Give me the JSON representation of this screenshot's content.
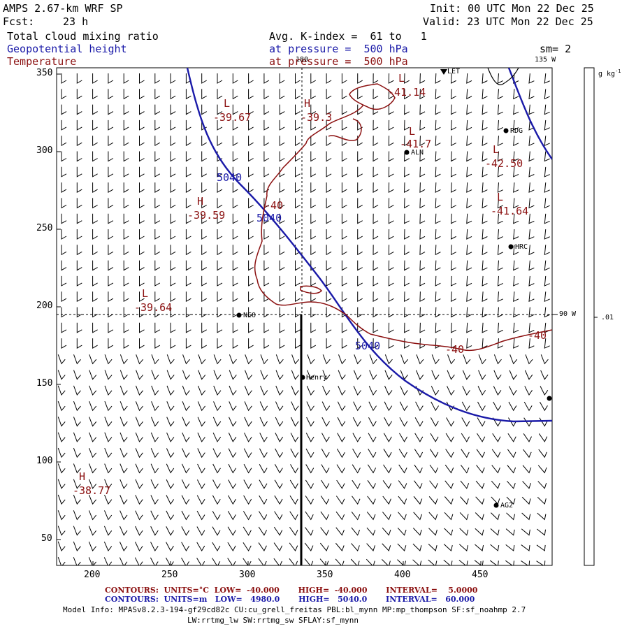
{
  "header": {
    "model": "AMPS 2.67-km WRF SP",
    "fcst_label": "Fcst:",
    "fcst_value": "23 h",
    "field1": "Total cloud mixing ratio",
    "field2": "Geopotential height",
    "field3": "Temperature",
    "init": "Init: 00 UTC Mon 22 Dec 25",
    "valid": "Valid: 23 UTC Mon 22 Dec 25",
    "avg": "Avg. K-index =  61 to   1",
    "pressure1": "at pressure =  500 hPa",
    "pressure2": "at pressure =  500 hPa",
    "sm": "sm= 2"
  },
  "map": {
    "x_ticks": [
      "200",
      "250",
      "300",
      "350",
      "400",
      "450"
    ],
    "y_ticks": [
      "350",
      "300",
      "250",
      "200",
      "150",
      "100",
      "50"
    ],
    "lon_top": "180",
    "lon_topright": "135 W",
    "lon_right": "90 W",
    "stations": [
      "RDG",
      "ALN",
      "HRC",
      "NCO",
      "Henry",
      "AG2",
      "LET"
    ],
    "height_labels": [
      "5040",
      "5040",
      "5040"
    ],
    "temp_labels": [
      "-40",
      "-40",
      "-40"
    ],
    "extrema": [
      {
        "kind": "L",
        "value": "-39.67"
      },
      {
        "kind": "H",
        "value": "-39.3"
      },
      {
        "kind": "L",
        "value": "-41.14"
      },
      {
        "kind": "L",
        "value": "-41.7"
      },
      {
        "kind": "L",
        "value": "-42.50"
      },
      {
        "kind": "L",
        "value": "-41.64"
      },
      {
        "kind": "H",
        "value": "-39.59"
      },
      {
        "kind": "L",
        "value": "-39.64"
      },
      {
        "kind": "H",
        "value": "-38.77"
      }
    ]
  },
  "colorbar": {
    "unit": "g kg",
    "unit_exp": "-1",
    "tick": ".01"
  },
  "footer": {
    "red_line": "CONTOURS:  UNITS=°C  LOW=  -40.000       HIGH=  -40.000       INTERVAL=    5.0000",
    "blue_line": "CONTOURS:  UNITS=m   LOW=   4980.0       HIGH=   5040.0       INTERVAL=   60.000",
    "model_info": "Model Info: MPASv8.2.3-194-gf29cd82c CU:cu_grell_freitas PBL:bl_mynn MP:mp_thompson SF:sf_noahmp 2.7",
    "model_info2": "LW:rrtmg_lw SW:rrtmg_sw SFLAY:sf_mynn"
  },
  "colors": {
    "height_contour": "#1a1aa8",
    "temp_contour": "#8b1010",
    "wind_barbs": "#000000"
  }
}
